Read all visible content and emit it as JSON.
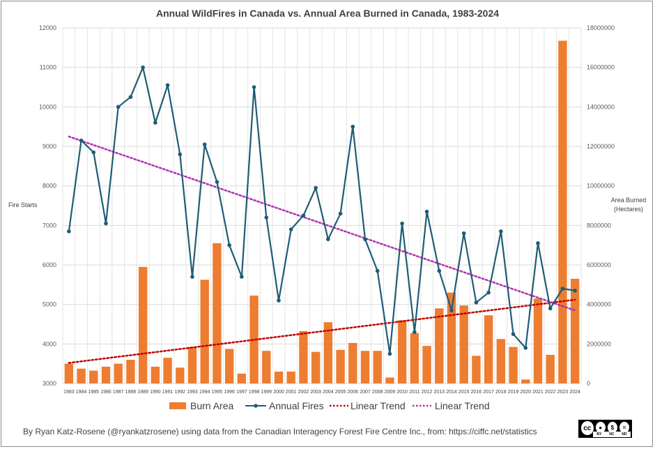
{
  "chart_data": {
    "type": "bar+line",
    "title": "Annual WildFires in Canada vs. Annual Area Burned in Canada, 1983-2024",
    "left_axis": {
      "label": "Fire Starts",
      "min": 3000,
      "max": 12000,
      "step": 1000,
      "ticks": [
        "3000",
        "4000",
        "5000",
        "6000",
        "7000",
        "8000",
        "9000",
        "10000",
        "11000",
        "12000"
      ]
    },
    "right_axis": {
      "label_line1": "Area Burned",
      "label_line2": "(Hectares)",
      "min": 0,
      "max": 18000000,
      "step": 2000000,
      "ticks": [
        "0",
        "2000000",
        "4000000",
        "6000000",
        "8000000",
        "10000000",
        "12000000",
        "14000000",
        "16000000",
        "18000000"
      ]
    },
    "years": [
      "1983",
      "1984",
      "1985",
      "1986",
      "1987",
      "1988",
      "1989",
      "1990",
      "1991",
      "1992",
      "1993",
      "1994",
      "1995",
      "1996",
      "1997",
      "1998",
      "1999",
      "2000",
      "2001",
      "2002",
      "2003",
      "2004",
      "2005",
      "2006",
      "2007",
      "2008",
      "2009",
      "2010",
      "2011",
      "2012",
      "2013",
      "2014",
      "2015",
      "2016",
      "2017",
      "2018",
      "2019",
      "2020",
      "2021",
      "2022",
      "2023",
      "2024"
    ],
    "series": [
      {
        "name": "Burn Area",
        "kind": "bar",
        "axis": "right",
        "color": "#ED7D31",
        "values": [
          1000000,
          750000,
          650000,
          850000,
          1000000,
          1200000,
          5900000,
          850000,
          1300000,
          800000,
          1850000,
          5250000,
          7100000,
          1750000,
          500000,
          4450000,
          1650000,
          600000,
          600000,
          2650000,
          1600000,
          3100000,
          1700000,
          2050000,
          1650000,
          1650000,
          300000,
          3200000,
          2550000,
          1900000,
          3800000,
          4600000,
          3950000,
          1400000,
          3450000,
          2250000,
          1850000,
          200000,
          4300000,
          1450000,
          17350000,
          5300000
        ]
      },
      {
        "name": "Annual Fires",
        "kind": "line",
        "axis": "left",
        "color": "#1F5C75",
        "values": [
          6850,
          9150,
          8850,
          7050,
          10000,
          10250,
          11000,
          9600,
          10550,
          8800,
          5700,
          9050,
          8100,
          6500,
          5700,
          10500,
          7200,
          5100,
          6900,
          7250,
          7950,
          6650,
          7300,
          9500,
          6650,
          5850,
          3750,
          7050,
          4300,
          7350,
          5850,
          4850,
          6800,
          5050,
          5300,
          6850,
          4250,
          3900,
          6550,
          4900,
          5400,
          5350
        ]
      },
      {
        "name": "Linear Trend",
        "kind": "trend",
        "axis": "left",
        "color": "#C00000",
        "start": 3520,
        "end": 5120
      },
      {
        "name": "Linear Trend",
        "kind": "trend",
        "axis": "left",
        "color": "#B030B0",
        "start": 9250,
        "end": 4850
      }
    ],
    "legend": [
      "Burn Area",
      "Annual Fires",
      "Linear Trend",
      "Linear Trend"
    ],
    "legend_position": "bottom",
    "grid": true
  },
  "footer": {
    "credit": "By Ryan Katz-Rosene (@ryankatzrosene) using data from the Canadian Interagency Forest Fire Centre Inc., from: https://ciffc.net/statistics",
    "license": {
      "main": "cc",
      "badges": [
        "BY",
        "NC",
        "ND"
      ]
    }
  }
}
